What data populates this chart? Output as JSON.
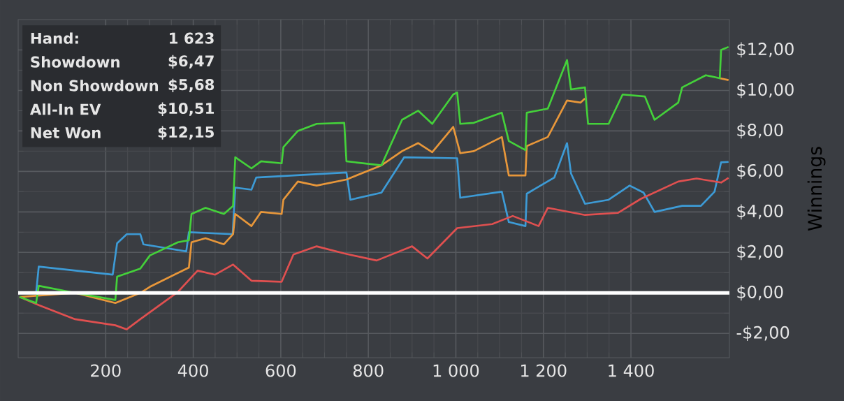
{
  "chart_data": {
    "type": "line",
    "ylabel": "Winnings",
    "xlim": [
      0,
      1625
    ],
    "ylim": [
      -3.2,
      13.5
    ],
    "xticks": [
      200,
      400,
      600,
      800,
      {
        "value": 1000,
        "label": "1 000"
      },
      {
        "value": 1200,
        "label": "1 200"
      },
      {
        "value": 1400,
        "label": "1 400"
      }
    ],
    "yticks": [
      {
        "value": -2,
        "label": "-$2,00"
      },
      {
        "value": 0,
        "label": "$0,00"
      },
      {
        "value": 2,
        "label": "$2,00"
      },
      {
        "value": 4,
        "label": "$4,00"
      },
      {
        "value": 6,
        "label": "$6,00"
      },
      {
        "value": 8,
        "label": "$8,00"
      },
      {
        "value": 10,
        "label": "$10,00"
      },
      {
        "value": 12,
        "label": "$12,00"
      }
    ],
    "grid": true,
    "marker": "none",
    "ref_lines": [
      {
        "axis": "y",
        "value": 0,
        "color": "#ffffff"
      }
    ],
    "annotations": [
      "Hand:",
      "1 623",
      "Showdown",
      "$6,47",
      "Non Showdown",
      "$5,68",
      "All-In EV",
      "$10,51",
      "Net Won",
      "$12,15"
    ],
    "series": [
      {
        "color": "#3d9bd6",
        "x": [
          3,
          41,
          47,
          216,
          226,
          248,
          279,
          286,
          384,
          390,
          490,
          496,
          533,
          544,
          750,
          759,
          830,
          882,
          1003,
          1010,
          1105,
          1121,
          1159,
          1162,
          1225,
          1254,
          1263,
          1295,
          1349,
          1397,
          1429,
          1454,
          1517,
          1560,
          1591,
          1606,
          1623
        ],
        "values": [
          0,
          0,
          1.3,
          0.9,
          2.45,
          2.9,
          2.9,
          2.4,
          2.05,
          3.0,
          2.9,
          5.2,
          5.1,
          5.7,
          5.95,
          4.6,
          4.95,
          6.7,
          6.65,
          4.7,
          5.0,
          3.5,
          3.3,
          4.9,
          5.7,
          7.4,
          5.9,
          4.4,
          4.6,
          5.3,
          4.95,
          4.0,
          4.3,
          4.3,
          5.0,
          6.45,
          6.47
        ]
      },
      {
        "color": "#e05050",
        "x": [
          3,
          47,
          130,
          222,
          248,
          279,
          365,
          410,
          450,
          491,
          533,
          602,
          629,
          682,
          745,
          819,
          900,
          935,
          1003,
          1083,
          1130,
          1189,
          1210,
          1295,
          1370,
          1423,
          1508,
          1550,
          1606,
          1623
        ],
        "values": [
          -0.2,
          -0.6,
          -1.3,
          -1.6,
          -1.8,
          -1.3,
          0.05,
          1.1,
          0.9,
          1.4,
          0.6,
          0.55,
          1.9,
          2.3,
          1.95,
          1.6,
          2.3,
          1.7,
          3.2,
          3.4,
          3.8,
          3.3,
          4.2,
          3.85,
          3.95,
          4.65,
          5.5,
          5.65,
          5.45,
          5.68
        ]
      },
      {
        "color": "#e8973a",
        "x": [
          3,
          130,
          222,
          279,
          301,
          390,
          396,
          428,
          470,
          491,
          496,
          533,
          555,
          602,
          606,
          639,
          682,
          750,
          830,
          877,
          914,
          946,
          994,
          1010,
          1041,
          1105,
          1121,
          1159,
          1162,
          1210,
          1254,
          1285,
          1295,
          1302,
          1349,
          1381,
          1432,
          1454,
          1508,
          1517,
          1571,
          1603,
          1623
        ],
        "values": [
          -0.2,
          0,
          -0.5,
          0,
          0.3,
          1.25,
          2.5,
          2.7,
          2.4,
          2.9,
          3.9,
          3.3,
          4.0,
          3.9,
          4.6,
          5.5,
          5.3,
          5.6,
          6.3,
          7.0,
          7.4,
          6.95,
          8.2,
          6.9,
          7.0,
          7.7,
          5.8,
          5.8,
          7.25,
          7.7,
          9.5,
          9.4,
          9.6,
          null,
          null,
          null,
          null,
          null,
          null,
          null,
          null,
          10.6,
          10.51
        ]
      },
      {
        "color": "#44d13a",
        "x": [
          3,
          41,
          47,
          130,
          222,
          226,
          279,
          301,
          365,
          390,
          396,
          428,
          470,
          491,
          496,
          533,
          555,
          602,
          606,
          639,
          682,
          745,
          750,
          830,
          877,
          914,
          946,
          994,
          1003,
          1010,
          1041,
          1105,
          1121,
          1159,
          1162,
          1210,
          1254,
          1263,
          1295,
          1302,
          1349,
          1381,
          1432,
          1454,
          1508,
          1517,
          1571,
          1603,
          1606,
          1623
        ],
        "values": [
          -0.2,
          -0.5,
          0.35,
          0,
          -0.35,
          0.8,
          1.2,
          1.85,
          2.5,
          2.6,
          3.9,
          4.2,
          3.9,
          4.3,
          6.7,
          6.15,
          6.5,
          6.4,
          7.2,
          8.0,
          8.35,
          8.4,
          6.5,
          6.3,
          8.55,
          9.0,
          8.35,
          9.8,
          9.9,
          8.35,
          8.4,
          8.9,
          7.5,
          7.05,
          8.9,
          9.1,
          11.5,
          10.05,
          10.15,
          8.35,
          8.35,
          9.8,
          9.7,
          8.55,
          9.4,
          10.15,
          10.75,
          10.6,
          12.0,
          12.15
        ]
      }
    ]
  }
}
